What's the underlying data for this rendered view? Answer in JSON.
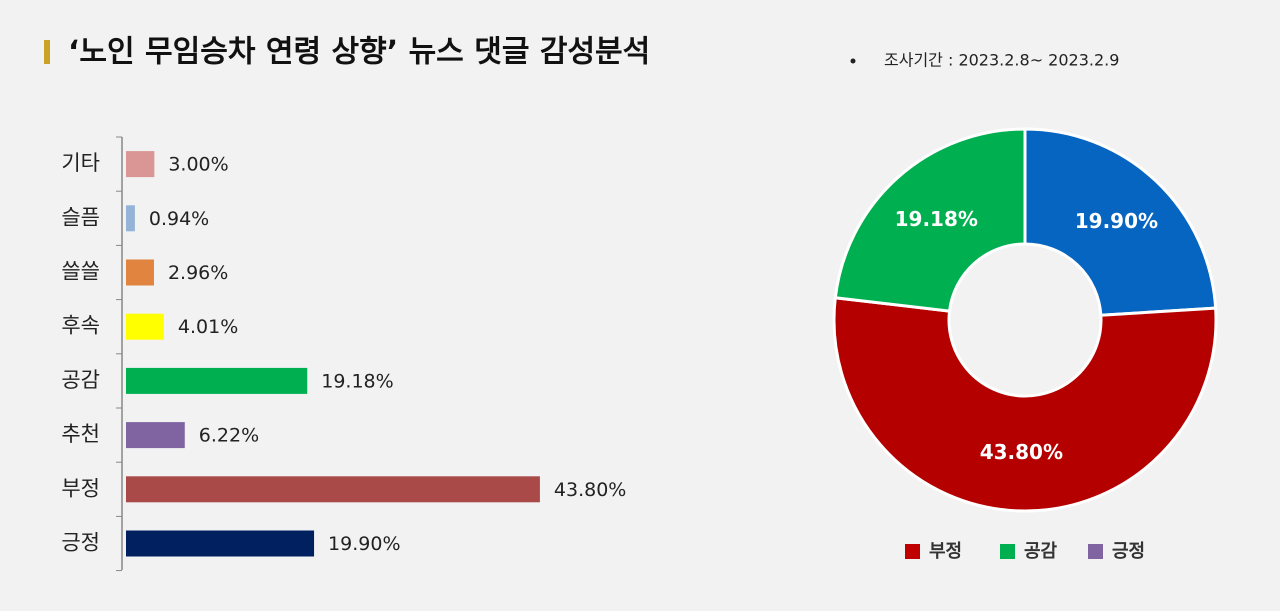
{
  "header": {
    "title": "‘노인 무임승차 연령 상향’ 뉴스 댓글 감성분석",
    "period": "조사기간 : 2023.2.8~ 2023.2.9"
  },
  "chart_data": [
    {
      "type": "bar",
      "orientation": "horizontal",
      "categories": [
        "기타",
        "슬픔",
        "쓸쓸",
        "후속",
        "공감",
        "추천",
        "부정",
        "긍정"
      ],
      "values": [
        3.0,
        0.94,
        2.96,
        4.01,
        19.18,
        6.22,
        43.8,
        19.9
      ],
      "value_labels": [
        "3.00%",
        "0.94%",
        "2.96%",
        "4.01%",
        "19.18%",
        "6.22%",
        "43.80%",
        "19.90%"
      ],
      "colors": [
        "#d99694",
        "#95b3d7",
        "#e0843f",
        "#ffff00",
        "#00b050",
        "#8064a2",
        "#a94a48",
        "#002060"
      ]
    },
    {
      "type": "donut",
      "categories": [
        "긍정",
        "부정",
        "공감"
      ],
      "values": [
        19.9,
        43.8,
        19.18
      ],
      "value_labels": [
        "19.90%",
        "43.80%",
        "19.18%"
      ],
      "colors": [
        "#0565c0",
        "#b50000",
        "#00b050"
      ],
      "legend_colors": [
        "#8064a2",
        "#c00000",
        "#00b050"
      ]
    }
  ]
}
